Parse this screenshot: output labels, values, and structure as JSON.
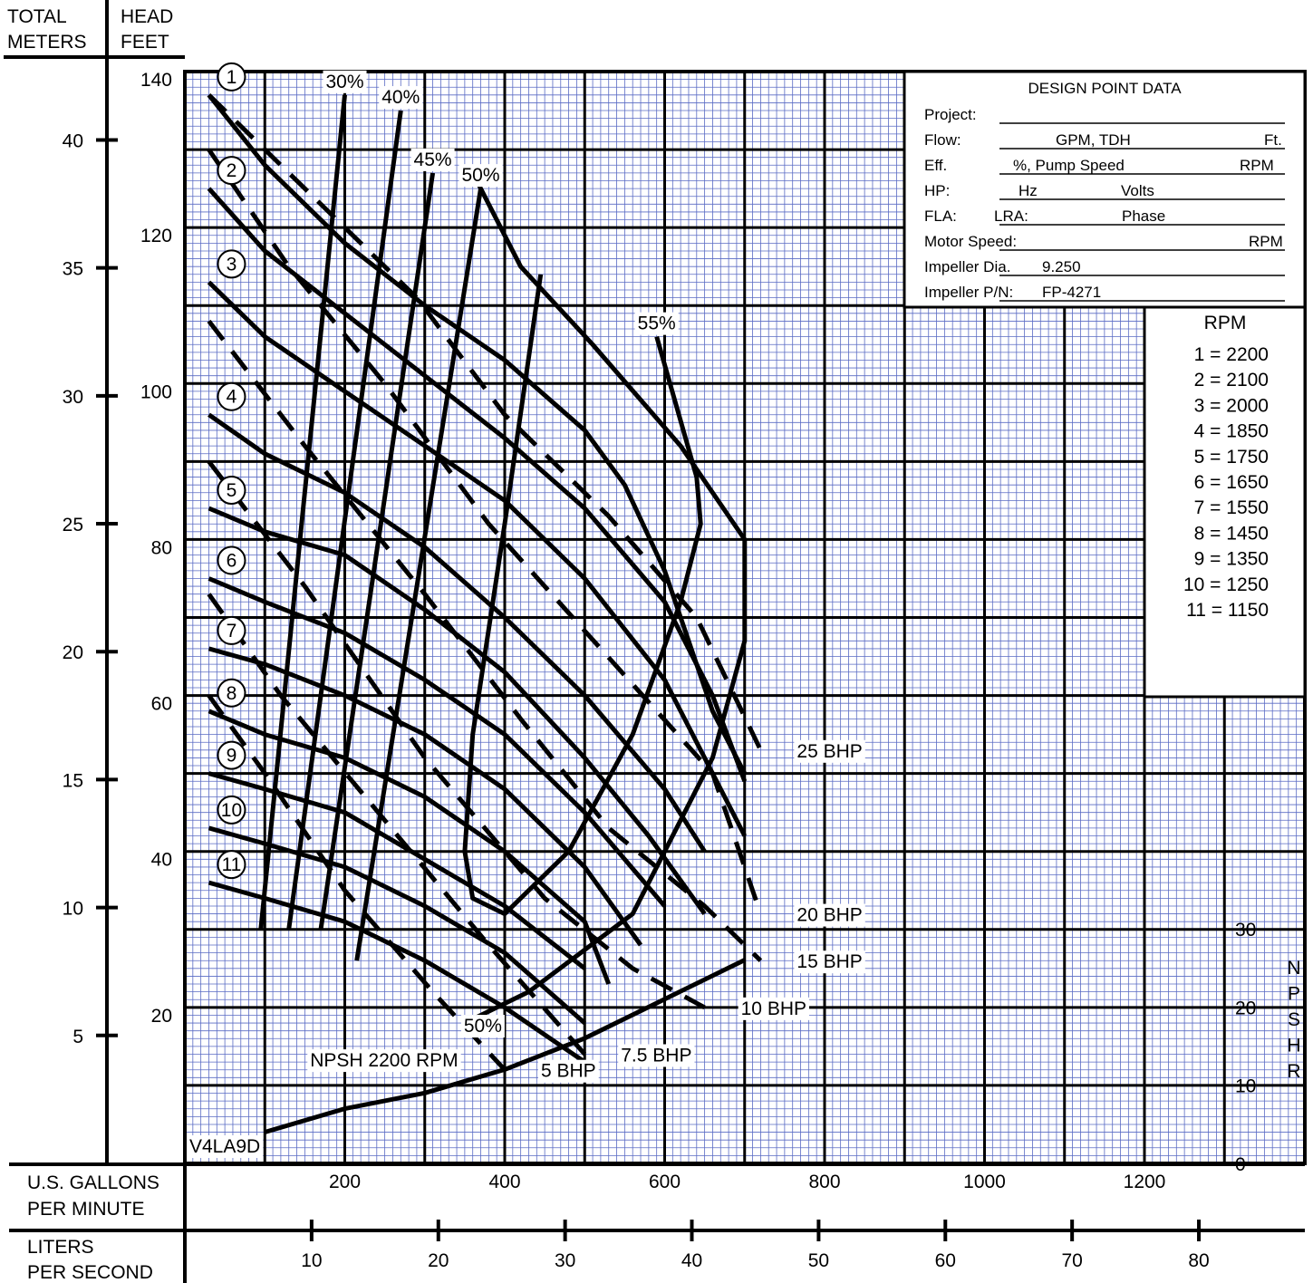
{
  "chart_data": {
    "type": "line",
    "model": "V4LA9D",
    "axes": {
      "left_meters_title": [
        "TOTAL",
        "METERS"
      ],
      "left_feet_title": [
        "HEAD",
        "FEET"
      ],
      "head_ft_ticks": [
        "140",
        "120",
        "100",
        "80",
        "60",
        "40",
        "20"
      ],
      "head_m_ticks": [
        "40",
        "35",
        "30",
        "25",
        "20",
        "15",
        "10",
        "5"
      ],
      "gpm_title": [
        "U.S. GALLONS",
        "PER MINUTE"
      ],
      "gpm_ticks": [
        "200",
        "400",
        "600",
        "800",
        "1000",
        "1200"
      ],
      "lps_title": [
        "LITERS",
        "PER SECOND"
      ],
      "lps_ticks": [
        "10",
        "20",
        "30",
        "40",
        "50",
        "60",
        "70",
        "80"
      ],
      "npshr_title": [
        "N",
        "P",
        "S",
        "H",
        "R"
      ],
      "npshr_ticks": [
        "30",
        "20",
        "10",
        "0"
      ],
      "gpm_range": [
        0,
        1400
      ],
      "head_ft_range": [
        0,
        140
      ],
      "npshr_range": [
        0,
        30
      ]
    },
    "design_point": {
      "title": "DESIGN POINT DATA",
      "project": "Project:",
      "flow": "Flow:",
      "gpm_tdh": "GPM, TDH",
      "ft": "Ft.",
      "eff": "Eff.",
      "pump_speed": "%, Pump Speed",
      "rpm": "RPM",
      "hp": "HP:",
      "hz": "Hz",
      "volts": "Volts",
      "fla": "FLA:",
      "lra": "LRA:",
      "phase": "Phase",
      "motor_speed": "Motor Speed:",
      "impeller_dia": "Impeller Dia.",
      "impeller_dia_value": "9.250",
      "impeller_pn": "Impeller  P/N:",
      "impeller_pn_value": "FP-4271"
    },
    "rpm_legend": {
      "title": "RPM",
      "entries": [
        "1 = 2200",
        "2 = 2100",
        "3 = 2000",
        "4 = 1850",
        "5 = 1750",
        "6 = 1650",
        "7 = 1550",
        "8 = 1450",
        "9 = 1350",
        "10 = 1250",
        "11 = 1150"
      ]
    },
    "speed_curves": [
      {
        "name": "1",
        "rpm": 2200,
        "points": [
          [
            30,
            137
          ],
          [
            100,
            128
          ],
          [
            200,
            118
          ],
          [
            300,
            110
          ],
          [
            400,
            103
          ],
          [
            500,
            94
          ],
          [
            550,
            87
          ],
          [
            600,
            76
          ],
          [
            660,
            58
          ],
          [
            700,
            50
          ]
        ]
      },
      {
        "name": "2",
        "rpm": 2100,
        "points": [
          [
            30,
            125
          ],
          [
            100,
            117
          ],
          [
            200,
            109
          ],
          [
            300,
            101
          ],
          [
            400,
            93
          ],
          [
            500,
            84
          ],
          [
            600,
            72
          ],
          [
            660,
            60
          ],
          [
            700,
            49
          ]
        ]
      },
      {
        "name": "3",
        "rpm": 2000,
        "points": [
          [
            30,
            113
          ],
          [
            100,
            106
          ],
          [
            200,
            99
          ],
          [
            300,
            92
          ],
          [
            400,
            85
          ],
          [
            500,
            75
          ],
          [
            600,
            62
          ],
          [
            650,
            52
          ],
          [
            700,
            42
          ]
        ]
      },
      {
        "name": "4",
        "rpm": 1850,
        "points": [
          [
            30,
            96
          ],
          [
            100,
            91
          ],
          [
            200,
            86
          ],
          [
            300,
            79
          ],
          [
            400,
            70
          ],
          [
            500,
            60
          ],
          [
            600,
            48
          ],
          [
            650,
            40
          ]
        ]
      },
      {
        "name": "5",
        "rpm": 1750,
        "points": [
          [
            30,
            84
          ],
          [
            100,
            81
          ],
          [
            200,
            78
          ],
          [
            300,
            71
          ],
          [
            400,
            63
          ],
          [
            500,
            52
          ],
          [
            580,
            42
          ],
          [
            650,
            32
          ]
        ]
      },
      {
        "name": "6",
        "rpm": 1650,
        "points": [
          [
            30,
            75
          ],
          [
            100,
            72
          ],
          [
            200,
            68
          ],
          [
            300,
            62
          ],
          [
            400,
            55
          ],
          [
            500,
            45
          ],
          [
            600,
            33
          ]
        ]
      },
      {
        "name": "7",
        "rpm": 1550,
        "points": [
          [
            30,
            66
          ],
          [
            100,
            64
          ],
          [
            200,
            60
          ],
          [
            300,
            55
          ],
          [
            400,
            48
          ],
          [
            500,
            38
          ],
          [
            570,
            28
          ]
        ]
      },
      {
        "name": "8",
        "rpm": 1450,
        "points": [
          [
            30,
            58
          ],
          [
            100,
            55
          ],
          [
            200,
            52
          ],
          [
            300,
            47
          ],
          [
            400,
            40
          ],
          [
            500,
            31
          ],
          [
            530,
            23
          ]
        ]
      },
      {
        "name": "9",
        "rpm": 1350,
        "points": [
          [
            30,
            50
          ],
          [
            100,
            48
          ],
          [
            200,
            45
          ],
          [
            300,
            39
          ],
          [
            400,
            33
          ],
          [
            500,
            25
          ]
        ]
      },
      {
        "name": "10",
        "rpm": 1250,
        "points": [
          [
            30,
            43
          ],
          [
            100,
            41
          ],
          [
            200,
            38
          ],
          [
            300,
            33
          ],
          [
            400,
            27
          ],
          [
            500,
            18
          ]
        ]
      },
      {
        "name": "11",
        "rpm": 1150,
        "points": [
          [
            30,
            36
          ],
          [
            100,
            34
          ],
          [
            200,
            31
          ],
          [
            300,
            26
          ],
          [
            400,
            20
          ],
          [
            500,
            13
          ]
        ]
      }
    ],
    "efficiency_curves": [
      {
        "name": "30%",
        "points": [
          [
            95,
            30
          ],
          [
            200,
            137
          ]
        ]
      },
      {
        "name": "40%",
        "points": [
          [
            130,
            30
          ],
          [
            270,
            135
          ]
        ]
      },
      {
        "name": "45%",
        "points": [
          [
            170,
            30
          ],
          [
            310,
            127
          ]
        ]
      },
      {
        "name": "50%",
        "points": [
          [
            215,
            26
          ],
          [
            370,
            125
          ]
        ]
      },
      {
        "name": "55%",
        "points": [
          [
            445,
            114
          ],
          [
            400,
            82
          ],
          [
            360,
            55
          ],
          [
            350,
            40
          ],
          [
            360,
            34
          ],
          [
            400,
            32
          ],
          [
            480,
            40
          ],
          [
            560,
            55
          ],
          [
            620,
            72
          ],
          [
            645,
            82
          ],
          [
            640,
            88
          ],
          [
            590,
            106
          ]
        ]
      },
      {
        "name": "50%",
        "points": [
          [
            360,
            127
          ],
          [
            420,
            115
          ],
          [
            510,
            105
          ],
          [
            620,
            92
          ],
          [
            700,
            80
          ],
          [
            700,
            67
          ],
          [
            660,
            52
          ],
          [
            560,
            32
          ],
          [
            430,
            22
          ],
          [
            350,
            18
          ]
        ]
      }
    ],
    "bhp_lines": [
      {
        "name": "25 BHP",
        "points": [
          [
            30,
            137
          ],
          [
            150,
            125
          ],
          [
            290,
            111
          ],
          [
            400,
            96
          ],
          [
            530,
            83
          ],
          [
            640,
            70
          ],
          [
            720,
            53
          ]
        ]
      },
      {
        "name": "20 BHP",
        "points": [
          [
            30,
            130
          ],
          [
            130,
            115
          ],
          [
            250,
            100
          ],
          [
            380,
            82
          ],
          [
            520,
            66
          ],
          [
            660,
            50
          ],
          [
            720,
            32
          ]
        ]
      },
      {
        "name": "15 BHP",
        "points": [
          [
            30,
            108
          ],
          [
            150,
            92
          ],
          [
            300,
            73
          ],
          [
            420,
            57
          ],
          [
            530,
            43
          ],
          [
            650,
            33
          ],
          [
            720,
            26
          ]
        ]
      },
      {
        "name": "10 BHP",
        "points": [
          [
            30,
            90
          ],
          [
            150,
            74
          ],
          [
            300,
            52
          ],
          [
            450,
            34
          ],
          [
            560,
            25
          ],
          [
            650,
            20
          ]
        ]
      },
      {
        "name": "7.5 BHP",
        "points": [
          [
            30,
            73
          ],
          [
            120,
            60
          ],
          [
            250,
            44
          ],
          [
            380,
            28
          ],
          [
            500,
            14
          ]
        ]
      },
      {
        "name": "5 BHP",
        "points": [
          [
            30,
            60
          ],
          [
            100,
            50
          ],
          [
            200,
            35
          ],
          [
            310,
            22
          ],
          [
            400,
            12
          ]
        ]
      }
    ],
    "npshr_curve": {
      "name": "NPSH 2200 RPM",
      "points": [
        [
          100,
          4
        ],
        [
          200,
          7
        ],
        [
          300,
          9
        ],
        [
          400,
          12
        ],
        [
          500,
          16
        ],
        [
          600,
          21
        ],
        [
          700,
          26
        ]
      ]
    }
  }
}
